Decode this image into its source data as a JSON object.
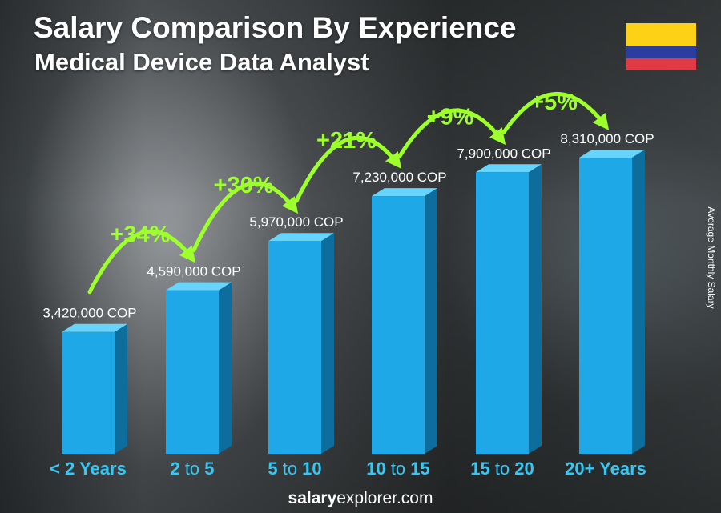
{
  "header": {
    "title": "Salary Comparison By Experience",
    "subtitle": "Medical Device Data Analyst"
  },
  "flag": {
    "colors": [
      "#fcd116",
      "#2b3ea0",
      "#e23a45"
    ]
  },
  "side_label": "Average Monthly Salary",
  "footer": {
    "brand_bold": "salary",
    "brand_regular": "explorer.com"
  },
  "colors": {
    "bar_front": "#1ea8e8",
    "bar_top": "#66d4fb",
    "bar_side": "#0d6d9d",
    "growth": "#9dff2b",
    "category": "#36c8f4"
  },
  "chart_data": {
    "type": "bar",
    "categories": [
      {
        "lead": "< 2 Years",
        "mid": "",
        "tail": ""
      },
      {
        "lead": "2",
        "mid": " to ",
        "tail": "5"
      },
      {
        "lead": "5",
        "mid": " to ",
        "tail": "10"
      },
      {
        "lead": "10",
        "mid": " to ",
        "tail": "15"
      },
      {
        "lead": "15",
        "mid": " to ",
        "tail": "20"
      },
      {
        "lead": "20+ Years",
        "mid": "",
        "tail": ""
      }
    ],
    "values": [
      3420000,
      4590000,
      5970000,
      7230000,
      7900000,
      8310000
    ],
    "value_labels": [
      "3,420,000 COP",
      "4,590,000 COP",
      "5,970,000 COP",
      "7,230,000 COP",
      "7,900,000 COP",
      "8,310,000 COP"
    ],
    "growth_labels": [
      "+34%",
      "+30%",
      "+21%",
      "+9%",
      "+5%"
    ],
    "unit": "COP",
    "ylabel": "Average Monthly Salary",
    "ylim": [
      0,
      8310000
    ],
    "grid": false,
    "legend": "none"
  }
}
